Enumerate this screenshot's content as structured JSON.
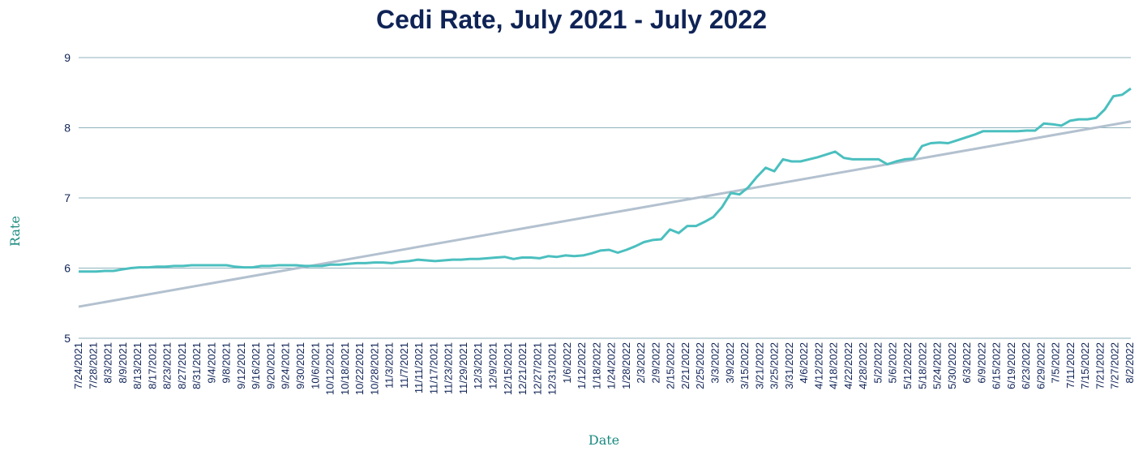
{
  "chart_data": {
    "type": "line",
    "title": "Cedi Rate, July 2021 - July 2022",
    "xlabel": "Date",
    "ylabel": "Rate",
    "ylim": [
      5,
      9
    ],
    "yticks": [
      5,
      6,
      7,
      8,
      9
    ],
    "grid": true,
    "legend": "none",
    "colors": {
      "title": "#0f2356",
      "axis_label": "#1a8a80",
      "tick_label": "#0f2356",
      "gridline": "#8fb3bd",
      "series": "#4bbfbf",
      "trendline": "#b3c1cf"
    },
    "x_tick_labels": [
      "7/24/2021",
      "7/28/2021",
      "8/3/2021",
      "8/9/2021",
      "8/13/2021",
      "8/17/2021",
      "8/23/2021",
      "8/27/2021",
      "8/31/2021",
      "9/4/2021",
      "9/8/2021",
      "9/12/2021",
      "9/16/2021",
      "9/20/2021",
      "9/24/2021",
      "9/30/2021",
      "10/6/2021",
      "10/12/2021",
      "10/18/2021",
      "10/22/2021",
      "10/28/2021",
      "11/3/2021",
      "11/7/2021",
      "11/11/2021",
      "11/17/2021",
      "11/23/2021",
      "11/29/2021",
      "12/3/2021",
      "12/9/2021",
      "12/15/2021",
      "12/21/2021",
      "12/27/2021",
      "12/31/2021",
      "1/6/2022",
      "1/12/2022",
      "1/18/2022",
      "1/24/2022",
      "1/28/2022",
      "2/3/2022",
      "2/9/2022",
      "2/15/2022",
      "2/21/2022",
      "2/25/2022",
      "3/3/2022",
      "3/9/2022",
      "3/15/2022",
      "3/21/2022",
      "3/25/2022",
      "3/31/2022",
      "4/6/2022",
      "4/12/2022",
      "4/18/2022",
      "4/22/2022",
      "4/28/2022",
      "5/2/2022",
      "5/6/2022",
      "5/12/2022",
      "5/18/2022",
      "5/24/2022",
      "5/30/2022",
      "6/3/2022",
      "6/9/2022",
      "6/15/2022",
      "6/19/2022",
      "6/23/2022",
      "6/29/2022",
      "7/5/2022",
      "7/11/2022",
      "7/15/2022",
      "7/21/2022",
      "7/27/2022",
      "8/2/2022"
    ],
    "series": [
      {
        "values": [
          5.95,
          5.95,
          5.95,
          5.96,
          5.96,
          5.98,
          6.0,
          6.01,
          6.01,
          6.02,
          6.02,
          6.03,
          6.03,
          6.04,
          6.04,
          6.04,
          6.04,
          6.04,
          6.02,
          6.01,
          6.01,
          6.03,
          6.03,
          6.04,
          6.04,
          6.04,
          6.03,
          6.03,
          6.03,
          6.05,
          6.05,
          6.06,
          6.07,
          6.07,
          6.08,
          6.08,
          6.07,
          6.09,
          6.1,
          6.12,
          6.11,
          6.1,
          6.11,
          6.12,
          6.12,
          6.13,
          6.13,
          6.14,
          6.15,
          6.16,
          6.13,
          6.15,
          6.15,
          6.14,
          6.17,
          6.16,
          6.18,
          6.17,
          6.18,
          6.21,
          6.25,
          6.26,
          6.22,
          6.26,
          6.31,
          6.37,
          6.4,
          6.41,
          6.55,
          6.5,
          6.6,
          6.6,
          6.66,
          6.73,
          6.87,
          7.07,
          7.05,
          7.15,
          7.3,
          7.43,
          7.38,
          7.55,
          7.52,
          7.52,
          7.55,
          7.58,
          7.62,
          7.66,
          7.57,
          7.55,
          7.55,
          7.55,
          7.55,
          7.48,
          7.52,
          7.55,
          7.56,
          7.74,
          7.78,
          7.79,
          7.78,
          7.82,
          7.86,
          7.9,
          7.95,
          7.95,
          7.95,
          7.95,
          7.95,
          7.96,
          7.96,
          8.06,
          8.05,
          8.03,
          8.1,
          8.12,
          8.12,
          8.14,
          8.26,
          8.45,
          8.47,
          8.56
        ]
      }
    ],
    "trendline": {
      "start": 5.45,
      "end": 8.09
    }
  }
}
